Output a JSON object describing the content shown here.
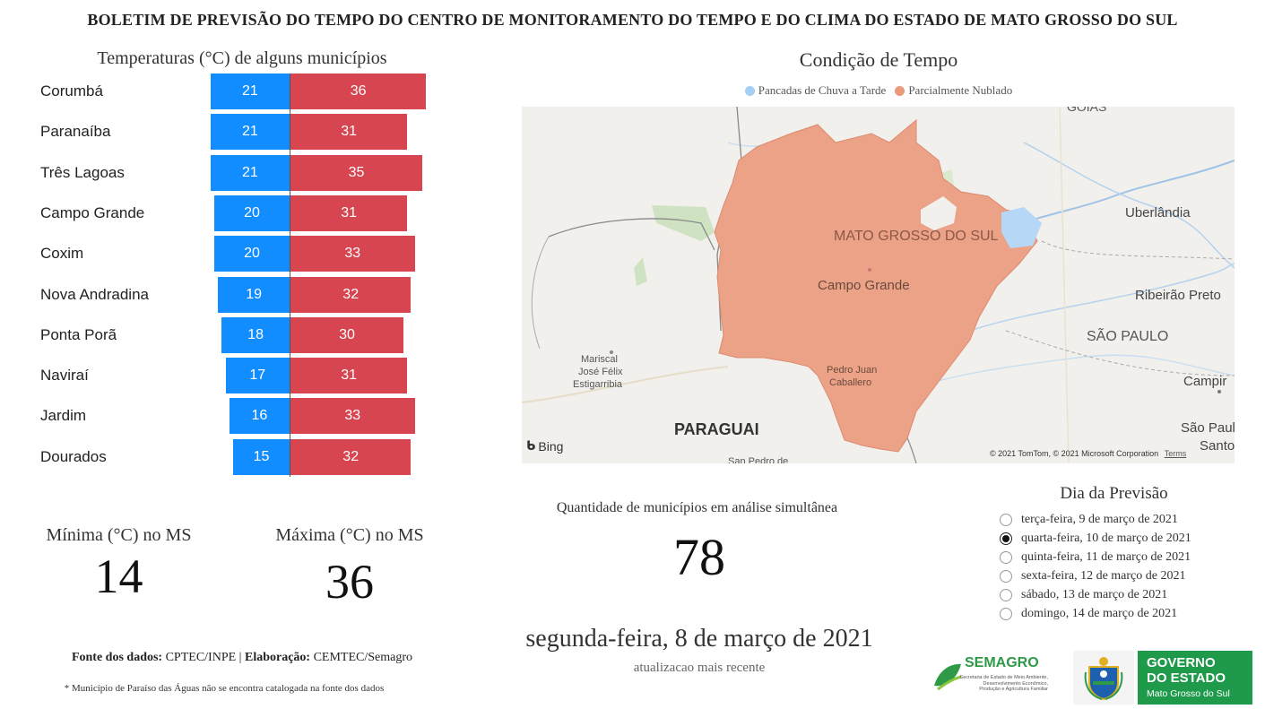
{
  "header": {
    "title": "BOLETIM DE PREVISÃO DO TEMPO DO CENTRO DE MONITORAMENTO DO TEMPO E DO CLIMA DO ESTADO DE MATO GROSSO DO SUL"
  },
  "temperatures": {
    "title": "Temperaturas (°C) de alguns municípios",
    "rows": [
      {
        "city": "Corumbá",
        "min": 21,
        "max": 36
      },
      {
        "city": "Paranaíba",
        "min": 21,
        "max": 31
      },
      {
        "city": "Três Lagoas",
        "min": 21,
        "max": 35
      },
      {
        "city": "Campo Grande",
        "min": 20,
        "max": 31
      },
      {
        "city": "Coxim",
        "min": 20,
        "max": 33
      },
      {
        "city": "Nova Andradina",
        "min": 19,
        "max": 32
      },
      {
        "city": "Ponta Porã",
        "min": 18,
        "max": 30
      },
      {
        "city": "Naviraí",
        "min": 17,
        "max": 31
      },
      {
        "city": "Jardim",
        "min": 16,
        "max": 33
      },
      {
        "city": "Dourados",
        "min": 15,
        "max": 32
      }
    ],
    "colors": {
      "min": "#118dff",
      "max": "#d64550"
    }
  },
  "kpis": {
    "min_label": "Mínima (°C) no MS",
    "min_value": "14",
    "max_label": "Máxima (°C) no MS",
    "max_value": "36"
  },
  "condition": {
    "title": "Condição de Tempo",
    "legend": [
      {
        "label": "Pancadas de Chuva a Tarde",
        "color": "#a6cff5"
      },
      {
        "label": "Parcialmente Nublado",
        "color": "#e89a7a"
      }
    ],
    "map_labels": {
      "goias": "GOIAS",
      "uberlandia": "Uberlândia",
      "state": "MATO GROSSO DO SUL",
      "campo_grande": "Campo Grande",
      "ribeirao": "Ribeirão Preto",
      "sao_paulo_state": "SÃO PAULO",
      "campinas": "Campir",
      "sao_paulo_city": "São Paulo",
      "santos": "Santo",
      "mariscal_1": "Mariscal",
      "mariscal_2": "José Félix",
      "mariscal_3": "Estigarribia",
      "pedro_1": "Pedro Juan",
      "pedro_2": "Caballero",
      "paraguai": "PARAGUAI",
      "san_pedro": "San Pedro de",
      "bing": "Bing",
      "copyright": "© 2021 TomTom, © 2021 Microsoft Corporation",
      "terms": "Terms"
    }
  },
  "count": {
    "label": "Quantidade de municípios em análise simultânea",
    "value": "78"
  },
  "date": {
    "main": "segunda-feira, 8 de março de 2021",
    "sub": "atualizacao mais recente"
  },
  "forecast_day": {
    "title": "Dia da Previsão",
    "options": [
      {
        "label": "terça-feira, 9 de março de 2021",
        "selected": false
      },
      {
        "label": "quarta-feira, 10 de março de 2021",
        "selected": true
      },
      {
        "label": "quinta-feira, 11 de março de 2021",
        "selected": false
      },
      {
        "label": "sexta-feira, 12 de março de 2021",
        "selected": false
      },
      {
        "label": "sábado, 13 de março de 2021",
        "selected": false
      },
      {
        "label": "domingo, 14 de março de 2021",
        "selected": false
      }
    ]
  },
  "footer": {
    "source_label": "Fonte dos dados:",
    "source_value": "CPTEC/INPE",
    "sep": "|",
    "made_label": "Elaboração:",
    "made_value": "CEMTEC/Semagro",
    "note": "* Município de Paraíso das Águas não se encontra catalogada na fonte dos dados"
  },
  "logos": {
    "semagro_name": "SEMAGRO",
    "semagro_sub_1": "Secretaria de Estado de Meio Ambiente,",
    "semagro_sub_2": "Desenvolvimento Econômico,",
    "semagro_sub_3": "Produção e Agricultura Familiar",
    "gov_1": "GOVERNO",
    "gov_2": "DO ESTADO",
    "gov_3": "Mato Grosso do Sul",
    "semagro_color": "#2e9a48",
    "gov_color": "#1f9a4a"
  }
}
